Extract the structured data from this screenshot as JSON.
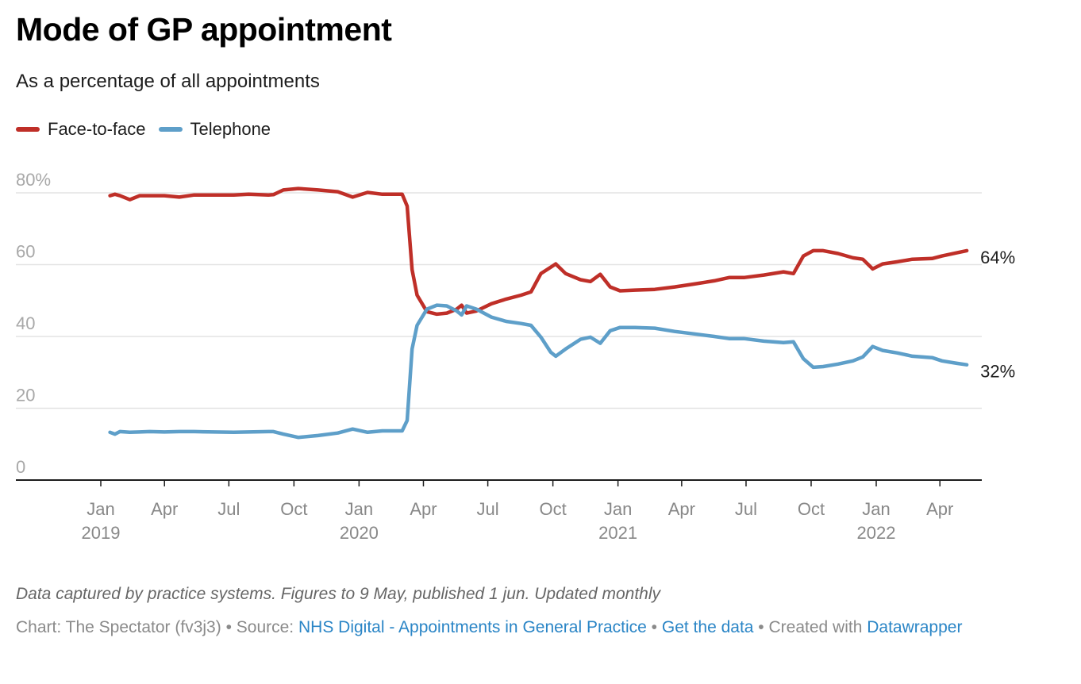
{
  "header": {
    "title": "Mode of GP appointment",
    "subtitle": "As a percentage of all appointments"
  },
  "legend": [
    {
      "label": "Face-to-face",
      "color": "#bf2f28"
    },
    {
      "label": "Telephone",
      "color": "#5e9fc9"
    }
  ],
  "footer": {
    "notes": "Data captured by practice systems. Figures to 9 May, published 1 jun. Updated monthly",
    "chart_prefix": "Chart: The Spectator (fv3j3)",
    "separator": " • ",
    "source_prefix": "Source: ",
    "source_link": "NHS Digital - Appointments in General Practice",
    "get_data_link": "Get the data",
    "created_prefix": "Created with ",
    "created_link": "Datawrapper"
  },
  "chart_data": {
    "type": "line",
    "title": "Mode of GP appointment",
    "subtitle": "As a percentage of all appointments",
    "xlabel": "",
    "ylabel": "",
    "ylim": [
      0,
      80
    ],
    "xlim": [
      "2018-10-01",
      "2022-06-15"
    ],
    "grid": true,
    "legend_position": "top-left",
    "y_ticks": [
      {
        "value": 0,
        "label": "0"
      },
      {
        "value": 20,
        "label": "20"
      },
      {
        "value": 40,
        "label": "40"
      },
      {
        "value": 60,
        "label": "60"
      },
      {
        "value": 80,
        "label": "80%"
      }
    ],
    "x_ticks": [
      {
        "date": "2019-01-01",
        "label": "Jan",
        "year": "2019"
      },
      {
        "date": "2019-04-01",
        "label": "Apr",
        "year": ""
      },
      {
        "date": "2019-07-01",
        "label": "Jul",
        "year": ""
      },
      {
        "date": "2019-10-01",
        "label": "Oct",
        "year": ""
      },
      {
        "date": "2020-01-01",
        "label": "Jan",
        "year": "2020"
      },
      {
        "date": "2020-04-01",
        "label": "Apr",
        "year": ""
      },
      {
        "date": "2020-07-01",
        "label": "Jul",
        "year": ""
      },
      {
        "date": "2020-10-01",
        "label": "Oct",
        "year": ""
      },
      {
        "date": "2021-01-01",
        "label": "Jan",
        "year": "2021"
      },
      {
        "date": "2021-04-01",
        "label": "Apr",
        "year": ""
      },
      {
        "date": "2021-07-01",
        "label": "Jul",
        "year": ""
      },
      {
        "date": "2021-10-01",
        "label": "Oct",
        "year": ""
      },
      {
        "date": "2022-01-01",
        "label": "Jan",
        "year": "2022"
      },
      {
        "date": "2022-04-01",
        "label": "Apr",
        "year": ""
      }
    ],
    "x": [
      "2019-01-14",
      "2019-01-21",
      "2019-01-28",
      "2019-02-11",
      "2019-02-25",
      "2019-03-11",
      "2019-04-01",
      "2019-04-22",
      "2019-05-13",
      "2019-06-10",
      "2019-07-08",
      "2019-07-29",
      "2019-08-26",
      "2019-09-02",
      "2019-09-16",
      "2019-10-07",
      "2019-11-04",
      "2019-12-02",
      "2019-12-23",
      "2020-01-13",
      "2020-02-03",
      "2020-03-02",
      "2020-03-09",
      "2020-03-16",
      "2020-03-23",
      "2020-04-06",
      "2020-04-20",
      "2020-05-04",
      "2020-05-18",
      "2020-05-25",
      "2020-06-01",
      "2020-06-15",
      "2020-07-06",
      "2020-07-27",
      "2020-08-17",
      "2020-08-31",
      "2020-09-14",
      "2020-09-28",
      "2020-10-05",
      "2020-10-19",
      "2020-11-09",
      "2020-11-23",
      "2020-12-07",
      "2020-12-21",
      "2021-01-04",
      "2021-01-25",
      "2021-02-22",
      "2021-03-22",
      "2021-04-19",
      "2021-05-17",
      "2021-06-07",
      "2021-06-28",
      "2021-07-26",
      "2021-08-23",
      "2021-09-06",
      "2021-09-20",
      "2021-10-04",
      "2021-10-18",
      "2021-11-08",
      "2021-11-29",
      "2021-12-13",
      "2021-12-27",
      "2022-01-10",
      "2022-01-31",
      "2022-02-21",
      "2022-03-21",
      "2022-04-04",
      "2022-04-25",
      "2022-05-09"
    ],
    "series": [
      {
        "name": "Face-to-face",
        "color": "#bf2f28",
        "end_label": "64%",
        "values": [
          79.2,
          79.6,
          79.2,
          78.1,
          79.2,
          79.2,
          79.2,
          78.8,
          79.4,
          79.4,
          79.4,
          79.6,
          79.4,
          79.5,
          80.8,
          81.2,
          80.8,
          80.3,
          78.8,
          80.1,
          79.6,
          79.6,
          76.3,
          58.6,
          51.5,
          46.9,
          46.2,
          46.5,
          47.6,
          48.7,
          46.5,
          47.1,
          49.1,
          50.4,
          51.5,
          52.4,
          57.5,
          59.3,
          60.2,
          57.5,
          55.8,
          55.3,
          57.3,
          53.8,
          52.7,
          52.9,
          53.1,
          53.8,
          54.6,
          55.5,
          56.4,
          56.4,
          57.1,
          58.0,
          57.5,
          62.4,
          63.9,
          63.9,
          63.1,
          61.9,
          61.5,
          58.8,
          60.2,
          60.8,
          61.5,
          61.7,
          62.4,
          63.3,
          63.9
        ]
      },
      {
        "name": "Telephone",
        "color": "#5e9fc9",
        "end_label": "32%",
        "values": [
          13.3,
          12.8,
          13.5,
          13.3,
          13.4,
          13.5,
          13.4,
          13.5,
          13.5,
          13.4,
          13.3,
          13.4,
          13.5,
          13.5,
          12.8,
          11.9,
          12.4,
          13.1,
          14.2,
          13.3,
          13.7,
          13.7,
          16.6,
          36.5,
          43.1,
          47.6,
          48.7,
          48.5,
          47.1,
          46.0,
          48.5,
          47.6,
          45.4,
          44.2,
          43.6,
          43.1,
          39.8,
          35.6,
          34.5,
          36.5,
          39.2,
          39.8,
          38.1,
          41.6,
          42.5,
          42.5,
          42.3,
          41.4,
          40.7,
          40.0,
          39.4,
          39.4,
          38.7,
          38.3,
          38.5,
          33.8,
          31.4,
          31.6,
          32.3,
          33.2,
          34.3,
          37.2,
          36.1,
          35.4,
          34.5,
          34.1,
          33.2,
          32.5,
          32.1
        ]
      }
    ]
  }
}
